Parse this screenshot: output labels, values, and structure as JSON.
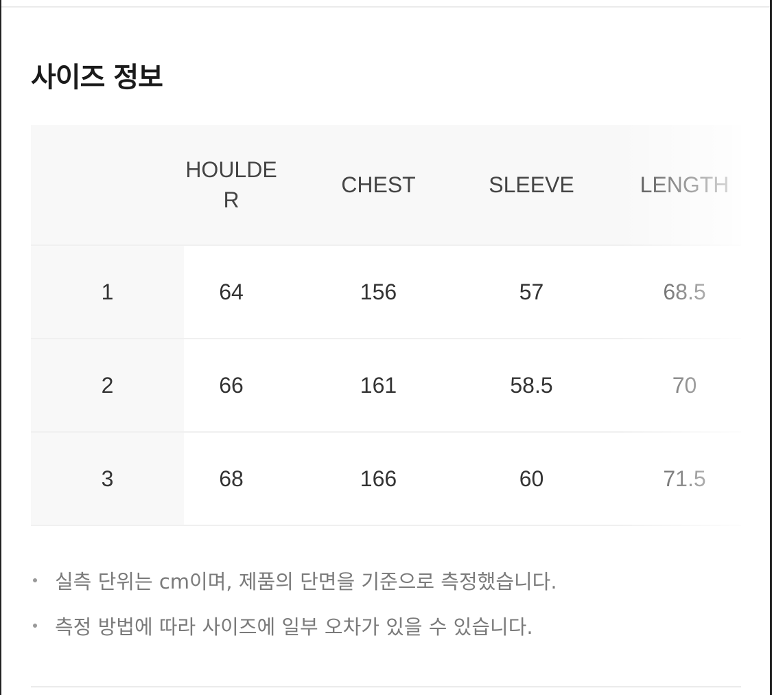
{
  "title": "사이즈 정보",
  "table": {
    "headers": [
      "",
      "HOULDER",
      "CHEST",
      "SLEEVE",
      "LENGTH"
    ],
    "rows": [
      [
        "1",
        "64",
        "156",
        "57",
        "68.5"
      ],
      [
        "2",
        "66",
        "161",
        "58.5",
        "70"
      ],
      [
        "3",
        "68",
        "166",
        "60",
        "71.5"
      ]
    ]
  },
  "notes": [
    "실측 단위는 cm이며, 제품의 단면을 기준으로 측정했습니다.",
    "측정 방법에 따라 사이즈에 일부 오차가 있을 수 있습니다."
  ]
}
